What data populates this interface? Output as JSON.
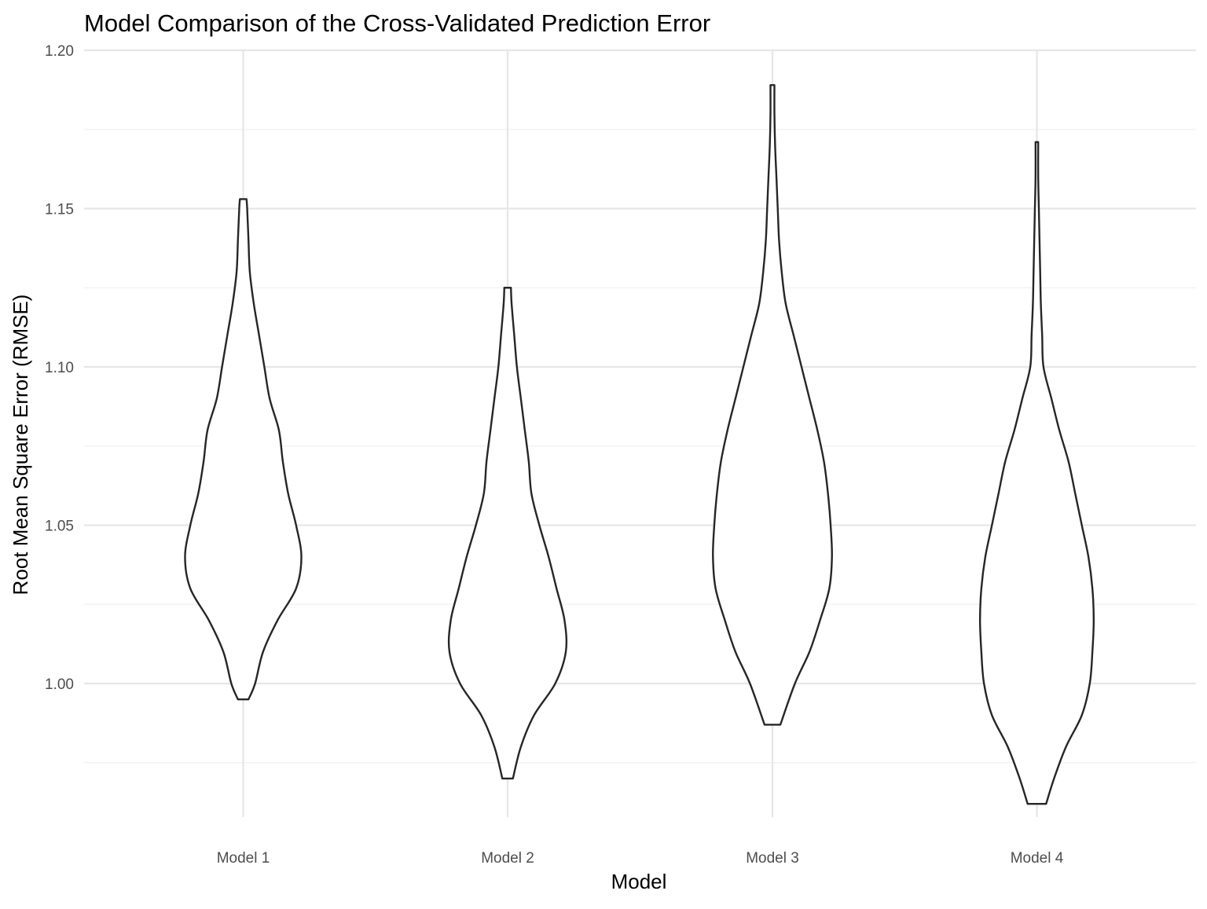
{
  "chart_data": {
    "type": "violin",
    "title": "Model Comparison of the Cross-Validated Prediction Error",
    "xlabel": "Model",
    "ylabel": "Root Mean Square Error (RMSE)",
    "categories": [
      "Model 1",
      "Model 2",
      "Model 3",
      "Model 4"
    ],
    "ylim": [
      0.958,
      1.2
    ],
    "y_ticks": [
      1.0,
      1.05,
      1.1,
      1.15,
      1.2
    ],
    "y_tick_labels": [
      "1.00",
      "1.05",
      "1.10",
      "1.15",
      "1.20"
    ],
    "grid": true,
    "line_color": "#262626",
    "grid_color": "#e6e6e6",
    "series": [
      {
        "category": "Model 1",
        "min": 0.995,
        "max": 1.153,
        "profile": [
          [
            0.995,
            0.04
          ],
          [
            1.0,
            0.09
          ],
          [
            1.01,
            0.15
          ],
          [
            1.02,
            0.26
          ],
          [
            1.03,
            0.4
          ],
          [
            1.04,
            0.44
          ],
          [
            1.05,
            0.4
          ],
          [
            1.06,
            0.34
          ],
          [
            1.07,
            0.3
          ],
          [
            1.08,
            0.27
          ],
          [
            1.09,
            0.2
          ],
          [
            1.1,
            0.16
          ],
          [
            1.11,
            0.12
          ],
          [
            1.12,
            0.08
          ],
          [
            1.13,
            0.05
          ],
          [
            1.14,
            0.04
          ],
          [
            1.15,
            0.03
          ],
          [
            1.153,
            0.025
          ]
        ]
      },
      {
        "category": "Model 2",
        "min": 0.97,
        "max": 1.125,
        "profile": [
          [
            0.97,
            0.04
          ],
          [
            0.98,
            0.1
          ],
          [
            0.99,
            0.2
          ],
          [
            1.0,
            0.36
          ],
          [
            1.01,
            0.44
          ],
          [
            1.02,
            0.43
          ],
          [
            1.03,
            0.37
          ],
          [
            1.04,
            0.31
          ],
          [
            1.05,
            0.24
          ],
          [
            1.06,
            0.18
          ],
          [
            1.07,
            0.16
          ],
          [
            1.08,
            0.13
          ],
          [
            1.09,
            0.1
          ],
          [
            1.1,
            0.07
          ],
          [
            1.11,
            0.05
          ],
          [
            1.12,
            0.03
          ],
          [
            1.125,
            0.025
          ]
        ]
      },
      {
        "category": "Model 3",
        "min": 0.987,
        "max": 1.189,
        "profile": [
          [
            0.987,
            0.06
          ],
          [
            1.0,
            0.17
          ],
          [
            1.01,
            0.28
          ],
          [
            1.02,
            0.36
          ],
          [
            1.03,
            0.43
          ],
          [
            1.04,
            0.45
          ],
          [
            1.05,
            0.44
          ],
          [
            1.06,
            0.42
          ],
          [
            1.07,
            0.39
          ],
          [
            1.08,
            0.34
          ],
          [
            1.09,
            0.28
          ],
          [
            1.1,
            0.22
          ],
          [
            1.11,
            0.16
          ],
          [
            1.12,
            0.1
          ],
          [
            1.13,
            0.07
          ],
          [
            1.14,
            0.05
          ],
          [
            1.15,
            0.04
          ],
          [
            1.16,
            0.03
          ],
          [
            1.17,
            0.02
          ],
          [
            1.18,
            0.015
          ],
          [
            1.189,
            0.015
          ]
        ]
      },
      {
        "category": "Model 4",
        "min": 0.962,
        "max": 1.171,
        "profile": [
          [
            0.962,
            0.07
          ],
          [
            0.97,
            0.13
          ],
          [
            0.98,
            0.22
          ],
          [
            0.99,
            0.34
          ],
          [
            1.0,
            0.4
          ],
          [
            1.01,
            0.42
          ],
          [
            1.02,
            0.43
          ],
          [
            1.03,
            0.42
          ],
          [
            1.04,
            0.39
          ],
          [
            1.05,
            0.34
          ],
          [
            1.06,
            0.29
          ],
          [
            1.07,
            0.24
          ],
          [
            1.08,
            0.17
          ],
          [
            1.09,
            0.11
          ],
          [
            1.1,
            0.05
          ],
          [
            1.11,
            0.04
          ],
          [
            1.12,
            0.03
          ],
          [
            1.13,
            0.025
          ],
          [
            1.14,
            0.02
          ],
          [
            1.15,
            0.015
          ],
          [
            1.16,
            0.01
          ],
          [
            1.171,
            0.01
          ]
        ]
      }
    ]
  }
}
